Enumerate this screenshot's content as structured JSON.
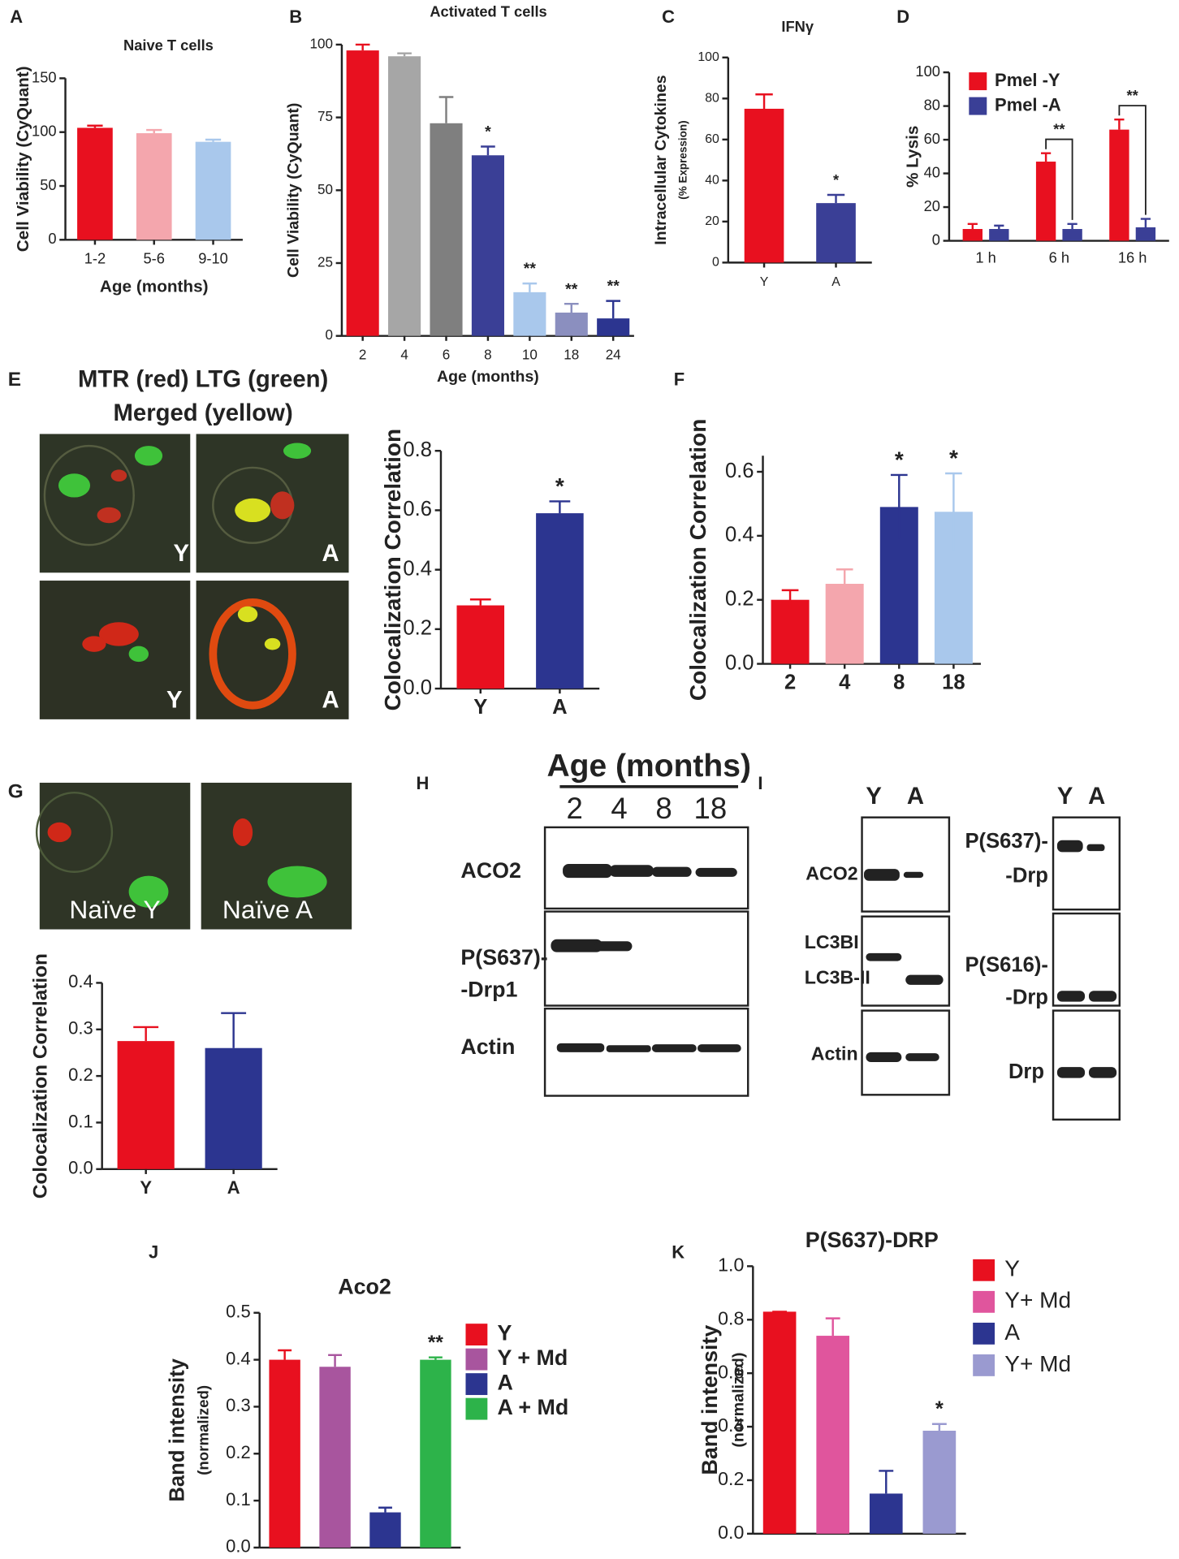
{
  "chart_data": [
    {
      "type": "bar",
      "panel": "A",
      "title": "Naive T cells",
      "ylabel": "Cell Viability (CyQuant)",
      "xlabel": "Age (months)",
      "categories": [
        "1-2",
        "5-6",
        "9-10"
      ],
      "values": [
        104,
        99,
        91
      ],
      "errors": [
        2,
        3,
        2
      ],
      "error_bars": "up",
      "colors": [
        "#e8101f",
        "#f4a6ad",
        "#a9c8ec"
      ],
      "ylim": [
        0,
        150
      ],
      "yticks": [
        0,
        50,
        100,
        150
      ]
    },
    {
      "type": "bar",
      "panel": "B",
      "title": "Activated T cells",
      "ylabel": "Cell Viability (CyQuant)",
      "xlabel": "Age (months)",
      "categories": [
        "2",
        "4",
        "6",
        "8",
        "10",
        "18",
        "24"
      ],
      "values": [
        98,
        96,
        73,
        62,
        15,
        8,
        6
      ],
      "errors": [
        2,
        1,
        9,
        3,
        3,
        3,
        6
      ],
      "error_bars": "up",
      "colors": [
        "#e8101f",
        "#a6a6a6",
        "#7f7f7f",
        "#3a3f96",
        "#a9c8ec",
        "#8b8fbf",
        "#2c3590"
      ],
      "annotations": [
        null,
        null,
        null,
        "*",
        "**",
        "**",
        "**"
      ],
      "ylim": [
        0,
        100
      ],
      "yticks": [
        0,
        25,
        50,
        75,
        100
      ]
    },
    {
      "type": "bar",
      "panel": "C",
      "title": "IFNγ",
      "ylabel": [
        "Intracellular Cytokines",
        "(% Expression)"
      ],
      "categories": [
        "Y",
        "A"
      ],
      "values": [
        75,
        29
      ],
      "errors": [
        7,
        4
      ],
      "error_bars": "up",
      "colors": [
        "#e8101f",
        "#3a3f96"
      ],
      "annotations": [
        null,
        "*"
      ],
      "ylim": [
        0,
        100
      ],
      "yticks": [
        0,
        20,
        40,
        60,
        80,
        100
      ]
    },
    {
      "type": "grouped_bar",
      "panel": "D",
      "ylabel": "% Lysis",
      "categories": [
        "1 h",
        "6 h",
        "16 h"
      ],
      "series": [
        {
          "name": "Pmel -Y",
          "color": "#e8101f",
          "values": [
            7,
            47,
            66
          ],
          "errors": [
            3,
            5,
            6
          ]
        },
        {
          "name": "Pmel -A",
          "color": "#3a3f96",
          "values": [
            7,
            7,
            8
          ],
          "errors": [
            2,
            3,
            5
          ]
        }
      ],
      "annotations": [
        null,
        "**",
        "**"
      ],
      "ylim": [
        0,
        100
      ],
      "yticks": [
        0,
        20,
        40,
        60,
        80,
        100
      ],
      "legend": "top-left"
    },
    {
      "type": "bar",
      "ylabel": "Colocalization Correlation",
      "categories": [
        "Y",
        "A"
      ],
      "values": [
        0.28,
        0.59
      ],
      "errors": [
        0.02,
        0.04
      ],
      "error_bars": "up",
      "colors": [
        "#e8101f",
        "#2c3590"
      ],
      "annotations": [
        null,
        "*"
      ],
      "ylim": [
        0,
        0.8
      ],
      "yticks": [
        {
          "value": 0,
          "label": "0.0"
        },
        {
          "value": 0.2,
          "label": "0.2"
        },
        {
          "value": 0.4,
          "label": "0.4"
        },
        {
          "value": 0.6,
          "label": "0.6"
        },
        {
          "value": 0.8,
          "label": "0.8"
        }
      ]
    },
    {
      "type": "bar",
      "panel": "F",
      "ylabel": "Colocalization Correlation",
      "categories": [
        "2",
        "4",
        "8",
        "18"
      ],
      "values": [
        0.2,
        0.25,
        0.49,
        0.475
      ],
      "errors": [
        0.03,
        0.045,
        0.1,
        0.12
      ],
      "error_bars": "both",
      "colors": [
        "#e8101f",
        "#f4a6ad",
        "#2c3590",
        "#a9c8ec"
      ],
      "annotations": [
        null,
        null,
        "*",
        "*"
      ],
      "ylim": [
        0,
        0.65
      ],
      "yticks": [
        {
          "value": 0,
          "label": "0.0"
        },
        {
          "value": 0.2,
          "label": "0.2"
        },
        {
          "value": 0.4,
          "label": "0.4"
        },
        {
          "value": 0.6,
          "label": "0.6"
        }
      ]
    },
    {
      "type": "bar",
      "ylabel": "Colocalization Correlation",
      "categories": [
        "Y",
        "A"
      ],
      "values": [
        0.275,
        0.26
      ],
      "errors": [
        0.03,
        0.075
      ],
      "error_bars": "up",
      "colors": [
        "#e8101f",
        "#2c3590"
      ],
      "ylim": [
        0,
        0.4
      ],
      "yticks": [
        {
          "value": 0,
          "label": "0.0"
        },
        {
          "value": 0.1,
          "label": "0.1"
        },
        {
          "value": 0.2,
          "label": "0.2"
        },
        {
          "value": 0.3,
          "label": "0.3"
        },
        {
          "value": 0.4,
          "label": "0.4"
        }
      ]
    },
    {
      "type": "bar",
      "panel": "J",
      "title": "Aco2",
      "ylabel": [
        "Band intensity",
        "(normalized)"
      ],
      "categories": [
        "Y",
        "Y + Md",
        "A",
        "A + Md"
      ],
      "values": [
        0.4,
        0.385,
        0.075,
        0.4
      ],
      "errors": [
        0.02,
        0.025,
        0.01,
        0.005
      ],
      "error_bars": "up",
      "colors": [
        "#e8101f",
        "#a8559e",
        "#2c3590",
        "#2db34a"
      ],
      "annotations": [
        null,
        null,
        null,
        "**"
      ],
      "legend": "right",
      "ylim": [
        0,
        0.5
      ],
      "yticks": [
        {
          "value": 0,
          "label": "0.0"
        },
        {
          "value": 0.1,
          "label": "0.1"
        },
        {
          "value": 0.2,
          "label": "0.2"
        },
        {
          "value": 0.3,
          "label": "0.3"
        },
        {
          "value": 0.4,
          "label": "0.4"
        },
        {
          "value": 0.5,
          "label": "0.5"
        }
      ]
    },
    {
      "type": "bar",
      "panel": "K",
      "title": "P(S637)-DRP",
      "ylabel": [
        "Band intensity",
        "(normalized)"
      ],
      "categories": [
        "Y",
        "Y+ Md",
        "A",
        "Y+ Md"
      ],
      "values": [
        0.83,
        0.74,
        0.15,
        0.385
      ],
      "errors": [
        0,
        0.065,
        0.085,
        0.025
      ],
      "error_bars": "up",
      "colors": [
        "#e8101f",
        "#e0559d",
        "#2c3590",
        "#9a9ad0"
      ],
      "annotations": [
        null,
        null,
        null,
        "*"
      ],
      "legend": "right",
      "ylim": [
        0,
        1.0
      ],
      "yticks": [
        {
          "value": 0,
          "label": "0.0"
        },
        {
          "value": 0.2,
          "label": "0.2"
        },
        {
          "value": 0.4,
          "label": "0.4"
        },
        {
          "value": 0.6,
          "label": "0.6"
        },
        {
          "value": 0.8,
          "label": "0.8"
        },
        {
          "value": 1.0,
          "label": "1.0"
        }
      ]
    }
  ],
  "micrographs": [
    {
      "panel": "E",
      "title": [
        "MTR (red) LTG (green)",
        "Merged (yellow)"
      ],
      "labels": [
        "Y",
        "A",
        "Y",
        "A"
      ]
    },
    {
      "panel": "G",
      "labels": [
        "Naïve Y",
        "Naïve A"
      ]
    }
  ],
  "blots": [
    {
      "panel": "H",
      "title": "Age (months)",
      "lanes": [
        "2",
        "4",
        "8",
        "18"
      ],
      "labels": [
        "ACO2",
        "P(S637)-",
        "-Drp1",
        "Actin"
      ]
    },
    {
      "panel": "I",
      "lanes": [
        "Y",
        "A"
      ],
      "labels": [
        "ACO2",
        "LC3BI",
        "LC3B-II",
        "Actin"
      ]
    },
    {
      "lanes": [
        "Y",
        "A"
      ],
      "labels": [
        "P(S637)-",
        "-Drp",
        "P(S616)-",
        "-Drp",
        "Drp"
      ]
    }
  ]
}
